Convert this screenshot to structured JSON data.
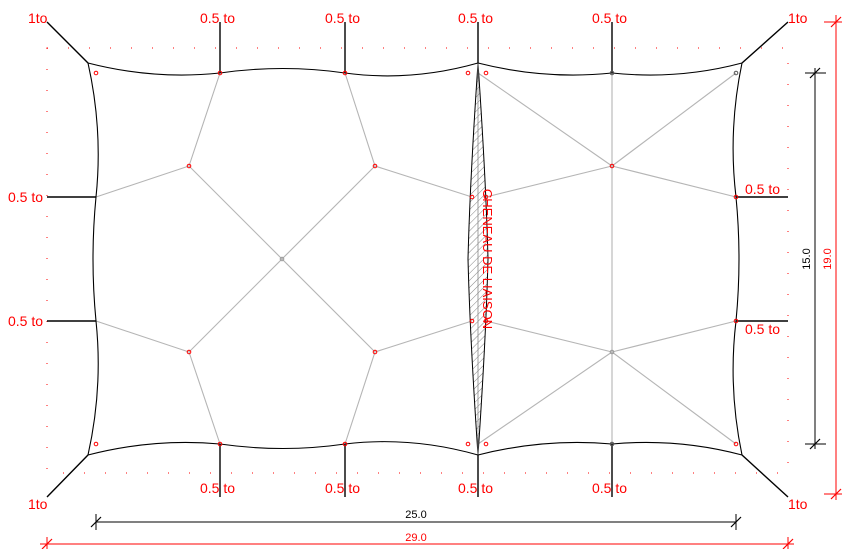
{
  "colors": {
    "annotation": "#ff0000",
    "cable": "#000000",
    "membrane_line": "#b5b5b5",
    "node_red": "#ff0000",
    "node_grey": "#555555",
    "dotted_border": "#ff0000"
  },
  "labels": {
    "corner_top_left": "1to",
    "corner_top_right": "1to",
    "corner_bottom_left": "1to",
    "corner_bottom_right": "1to",
    "top_1": "0.5 to",
    "top_2": "0.5 to",
    "top_3": "0.5 to",
    "top_4": "0.5 to",
    "bottom_1": "0.5 to",
    "bottom_2": "0.5 to",
    "bottom_3": "0.5 to",
    "bottom_4": "0.5 to",
    "left_1": "0.5 to",
    "left_2": "0.5 to",
    "right_1": "0.5 to",
    "right_2": "0.5 to",
    "gutter": "CHENEAU DE LIAISON"
  },
  "dimensions": {
    "inner_width": "25.0",
    "outer_width": "29.0",
    "inner_height": "15.0",
    "outer_height": "19.0"
  }
}
